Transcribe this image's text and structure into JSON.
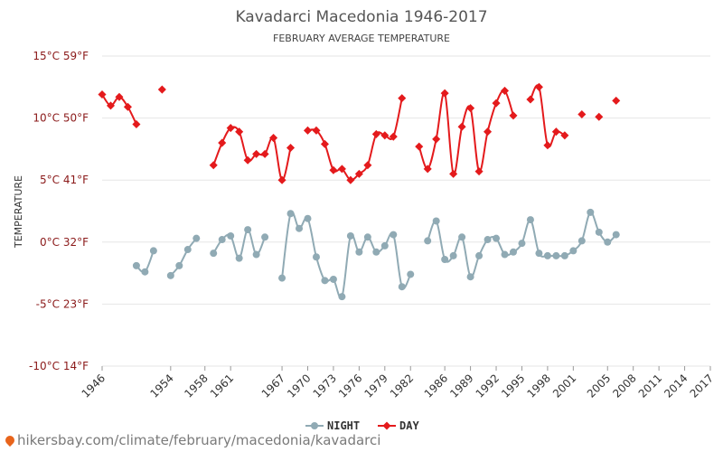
{
  "chart_data": {
    "type": "line",
    "title": "Kavadarci Macedonia 1946-2017",
    "subtitle": "FEBRUARY AVERAGE TEMPERATURE",
    "ylabel": "TEMPERATURE",
    "ylim": [
      -10,
      15
    ],
    "xlim": [
      1946,
      2017
    ],
    "yticks": [
      {
        "value": 15,
        "label": "15°C 59°F"
      },
      {
        "value": 10,
        "label": "10°C 50°F"
      },
      {
        "value": 5,
        "label": "5°C 41°F"
      },
      {
        "value": 0,
        "label": "0°C 32°F"
      },
      {
        "value": -5,
        "label": "-5°C 23°F"
      },
      {
        "value": -10,
        "label": "-10°C 14°F"
      }
    ],
    "xticks": [
      1946,
      1954,
      1958,
      1961,
      1967,
      1970,
      1973,
      1976,
      1979,
      1982,
      1986,
      1989,
      1992,
      1995,
      1998,
      2001,
      2005,
      2008,
      2011,
      2014,
      2017
    ],
    "grid": true,
    "legend_position": "bottom",
    "series": [
      {
        "name": "NIGHT",
        "color": "#90aab4",
        "values": [
          [
            1946,
            null
          ],
          [
            1947,
            null
          ],
          [
            1948,
            null
          ],
          [
            1949,
            null
          ],
          [
            1950,
            -1.9
          ],
          [
            1951,
            -2.4
          ],
          [
            1952,
            -0.7
          ],
          [
            1953,
            null
          ],
          [
            1954,
            -2.7
          ],
          [
            1955,
            -1.9
          ],
          [
            1956,
            -0.6
          ],
          [
            1957,
            0.3
          ],
          [
            1958,
            null
          ],
          [
            1959,
            -0.9
          ],
          [
            1960,
            0.2
          ],
          [
            1961,
            0.5
          ],
          [
            1962,
            -1.3
          ],
          [
            1963,
            1.0
          ],
          [
            1964,
            -1.0
          ],
          [
            1965,
            0.4
          ],
          [
            1966,
            null
          ],
          [
            1967,
            -2.9
          ],
          [
            1968,
            2.3
          ],
          [
            1969,
            1.1
          ],
          [
            1970,
            1.9
          ],
          [
            1971,
            -1.2
          ],
          [
            1972,
            -3.1
          ],
          [
            1973,
            -3.0
          ],
          [
            1974,
            -4.4
          ],
          [
            1975,
            0.5
          ],
          [
            1976,
            -0.8
          ],
          [
            1977,
            0.4
          ],
          [
            1978,
            -0.8
          ],
          [
            1979,
            -0.3
          ],
          [
            1980,
            0.6
          ],
          [
            1981,
            -3.6
          ],
          [
            1982,
            -2.6
          ],
          [
            1983,
            null
          ],
          [
            1984,
            0.1
          ],
          [
            1985,
            1.7
          ],
          [
            1986,
            -1.4
          ],
          [
            1987,
            -1.1
          ],
          [
            1988,
            0.4
          ],
          [
            1989,
            -2.8
          ],
          [
            1990,
            -1.1
          ],
          [
            1991,
            0.2
          ],
          [
            1992,
            0.3
          ],
          [
            1993,
            -1.0
          ],
          [
            1994,
            -0.8
          ],
          [
            1995,
            -0.1
          ],
          [
            1996,
            1.8
          ],
          [
            1997,
            -0.9
          ],
          [
            1998,
            -1.1
          ],
          [
            1999,
            -1.1
          ],
          [
            2000,
            -1.1
          ],
          [
            2001,
            -0.7
          ],
          [
            2002,
            0.1
          ],
          [
            2003,
            2.4
          ],
          [
            2004,
            0.8
          ],
          [
            2005,
            0.0
          ],
          [
            2006,
            0.6
          ]
        ]
      },
      {
        "name": "DAY",
        "color": "#e41a1c",
        "values": [
          [
            1946,
            11.9
          ],
          [
            1947,
            11.0
          ],
          [
            1948,
            11.7
          ],
          [
            1949,
            10.9
          ],
          [
            1950,
            9.5
          ],
          [
            1951,
            null
          ],
          [
            1952,
            null
          ],
          [
            1953,
            12.3
          ],
          [
            1954,
            null
          ],
          [
            1955,
            null
          ],
          [
            1956,
            null
          ],
          [
            1957,
            null
          ],
          [
            1958,
            null
          ],
          [
            1959,
            6.2
          ],
          [
            1960,
            8.0
          ],
          [
            1961,
            9.2
          ],
          [
            1962,
            8.9
          ],
          [
            1963,
            6.6
          ],
          [
            1964,
            7.1
          ],
          [
            1965,
            7.1
          ],
          [
            1966,
            8.4
          ],
          [
            1967,
            5.0
          ],
          [
            1968,
            7.6
          ],
          [
            1969,
            null
          ],
          [
            1970,
            9.0
          ],
          [
            1971,
            9.0
          ],
          [
            1972,
            7.9
          ],
          [
            1973,
            5.8
          ],
          [
            1974,
            5.9
          ],
          [
            1975,
            5.0
          ],
          [
            1976,
            5.5
          ],
          [
            1977,
            6.2
          ],
          [
            1978,
            8.7
          ],
          [
            1979,
            8.6
          ],
          [
            1980,
            8.5
          ],
          [
            1981,
            11.6
          ],
          [
            1982,
            null
          ],
          [
            1983,
            7.7
          ],
          [
            1984,
            5.9
          ],
          [
            1985,
            8.3
          ],
          [
            1986,
            12.0
          ],
          [
            1987,
            5.5
          ],
          [
            1988,
            9.3
          ],
          [
            1989,
            10.8
          ],
          [
            1990,
            5.7
          ],
          [
            1991,
            8.9
          ],
          [
            1992,
            11.2
          ],
          [
            1993,
            12.2
          ],
          [
            1994,
            10.2
          ],
          [
            1995,
            null
          ],
          [
            1996,
            11.5
          ],
          [
            1997,
            12.5
          ],
          [
            1998,
            7.8
          ],
          [
            1999,
            8.9
          ],
          [
            2000,
            8.6
          ],
          [
            2001,
            null
          ],
          [
            2002,
            10.3
          ],
          [
            2003,
            null
          ],
          [
            2004,
            10.1
          ],
          [
            2005,
            null
          ],
          [
            2006,
            11.4
          ]
        ]
      }
    ]
  },
  "footer": {
    "url_text": "hikersbay.com/climate/february/macedonia/kavadarci"
  }
}
